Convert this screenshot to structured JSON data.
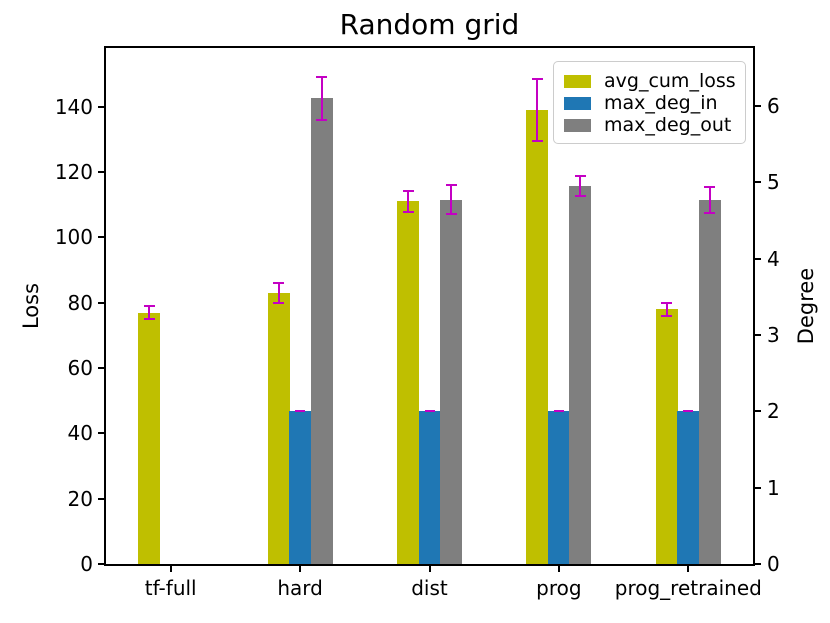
{
  "figure": {
    "title": "Random grid"
  },
  "chart_data": {
    "type": "bar",
    "title": "Random grid",
    "categories": [
      "tf-full",
      "hard",
      "dist",
      "prog",
      "prog_retrained"
    ],
    "ylabel_left": "Loss",
    "ylabel_right": "Degree",
    "ylim_left": [
      0,
      158
    ],
    "ylim_right": [
      0,
      6.76
    ],
    "yticks_left": [
      0,
      20,
      40,
      60,
      80,
      100,
      120,
      140
    ],
    "yticks_right": [
      0,
      1,
      2,
      3,
      4,
      5,
      6
    ],
    "grid": false,
    "legend_position": "upper right",
    "error_bar_color": "#c400c4",
    "series": [
      {
        "name": "avg_cum_loss",
        "axis": "left",
        "color": "#bfbf00",
        "values": [
          77,
          83,
          111,
          139,
          78
        ],
        "errors": [
          2,
          3,
          3.3,
          9.5,
          2
        ]
      },
      {
        "name": "max_deg_in",
        "axis": "right",
        "color": "#1f77b4",
        "values": [
          null,
          2,
          2,
          2,
          2
        ],
        "errors": [
          null,
          0,
          0,
          0,
          0
        ]
      },
      {
        "name": "max_deg_out",
        "axis": "right",
        "color": "#7f7f7f",
        "values": [
          null,
          6.1,
          4.77,
          4.95,
          4.77
        ],
        "errors": [
          null,
          0.28,
          0.19,
          0.13,
          0.17
        ]
      }
    ]
  }
}
